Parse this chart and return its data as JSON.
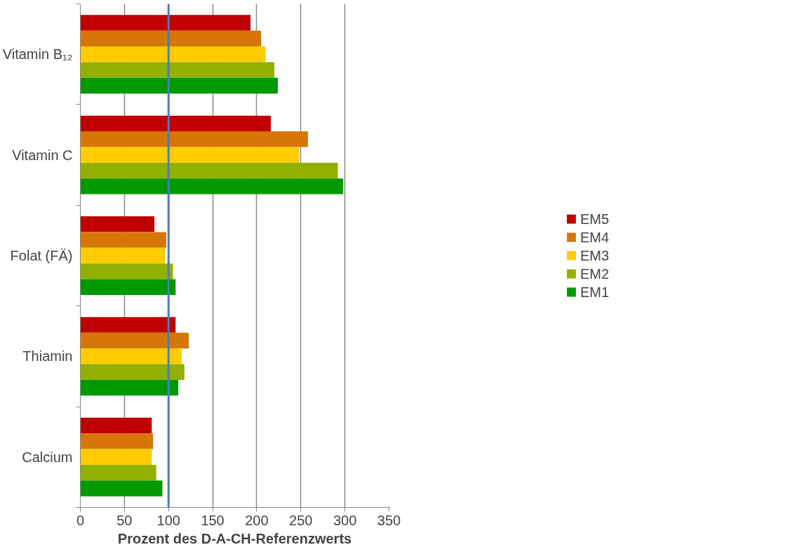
{
  "chart_data": {
    "type": "bar",
    "orientation": "horizontal",
    "xlabel": "Prozent des D-A-CH-Referenzwerts",
    "categories": [
      "Vitamin B₁₂",
      "Vitamin C",
      "Folat (FÄ)",
      "Thiamin",
      "Calcium"
    ],
    "series": [
      {
        "name": "EM5",
        "color": "#c00000",
        "values": [
          193,
          216,
          84,
          108,
          81
        ]
      },
      {
        "name": "EM4",
        "color": "#d67606",
        "values": [
          205,
          258,
          97.5,
          123,
          82.5
        ]
      },
      {
        "name": "EM3",
        "color": "#ffcc00",
        "values": [
          210,
          248,
          96,
          115,
          81
        ]
      },
      {
        "name": "EM2",
        "color": "#92b000",
        "values": [
          220,
          292,
          105,
          118,
          86
        ]
      },
      {
        "name": "EM1",
        "color": "#009900",
        "values": [
          224,
          298,
          108,
          111,
          93
        ]
      }
    ],
    "xlim": [
      0,
      350
    ],
    "xticks": [
      0,
      50,
      100,
      150,
      200,
      250,
      300,
      350
    ],
    "grid": "x",
    "legend": "right",
    "ref_lines": [
      {
        "axis": "x",
        "value": 100,
        "color": "#4a7ebb"
      }
    ]
  }
}
